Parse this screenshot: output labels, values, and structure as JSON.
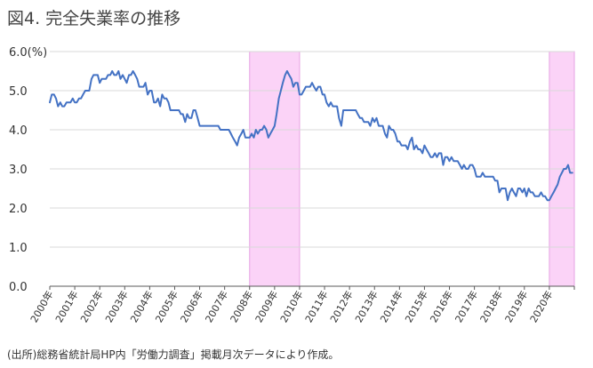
{
  "chart_data": {
    "type": "line",
    "title": "図4. 完全失業率の推移",
    "ylabel": "6.0(%)",
    "ylim": [
      0,
      6
    ],
    "y_ticks": [
      "0.0",
      "1.0",
      "2.0",
      "3.0",
      "4.0",
      "5.0"
    ],
    "x_tick_labels": [
      "2000年",
      "2001年",
      "2002年",
      "2003年",
      "2004年",
      "2005年",
      "2006年",
      "2007年",
      "2008年",
      "2009年",
      "2010年",
      "2011年",
      "2012年",
      "2013年",
      "2014年",
      "2015年",
      "2016年",
      "2017年",
      "2018年",
      "2019年",
      "2020年"
    ],
    "x_range": [
      2000.0,
      2021.0
    ],
    "grid": "horizontal",
    "colors": {
      "line": "#4472c4",
      "shade": "#fbd3f7",
      "shade_edge": "#e6a3e3",
      "grid": "#d9d9d9"
    },
    "shaded_periods": [
      {
        "start": 2008.0,
        "end": 2010.0
      },
      {
        "start": 2020.0,
        "end": 2021.0
      }
    ],
    "series": [
      {
        "points": [
          [
            2000.0,
            4.7
          ],
          [
            2000.08,
            4.9
          ],
          [
            2000.17,
            4.9
          ],
          [
            2000.25,
            4.8
          ],
          [
            2000.33,
            4.6
          ],
          [
            2000.42,
            4.7
          ],
          [
            2000.5,
            4.6
          ],
          [
            2000.58,
            4.6
          ],
          [
            2000.67,
            4.7
          ],
          [
            2000.75,
            4.7
          ],
          [
            2000.83,
            4.7
          ],
          [
            2000.92,
            4.8
          ],
          [
            2001.0,
            4.7
          ],
          [
            2001.08,
            4.7
          ],
          [
            2001.17,
            4.8
          ],
          [
            2001.25,
            4.8
          ],
          [
            2001.33,
            4.9
          ],
          [
            2001.42,
            5.0
          ],
          [
            2001.5,
            5.0
          ],
          [
            2001.58,
            5.0
          ],
          [
            2001.67,
            5.3
          ],
          [
            2001.75,
            5.4
          ],
          [
            2001.83,
            5.4
          ],
          [
            2001.92,
            5.4
          ],
          [
            2002.0,
            5.2
          ],
          [
            2002.08,
            5.3
          ],
          [
            2002.17,
            5.3
          ],
          [
            2002.25,
            5.3
          ],
          [
            2002.33,
            5.4
          ],
          [
            2002.42,
            5.4
          ],
          [
            2002.5,
            5.5
          ],
          [
            2002.58,
            5.4
          ],
          [
            2002.67,
            5.4
          ],
          [
            2002.75,
            5.5
          ],
          [
            2002.83,
            5.3
          ],
          [
            2002.92,
            5.4
          ],
          [
            2003.0,
            5.3
          ],
          [
            2003.08,
            5.2
          ],
          [
            2003.17,
            5.4
          ],
          [
            2003.25,
            5.4
          ],
          [
            2003.33,
            5.5
          ],
          [
            2003.42,
            5.4
          ],
          [
            2003.5,
            5.3
          ],
          [
            2003.58,
            5.1
          ],
          [
            2003.67,
            5.1
          ],
          [
            2003.75,
            5.1
          ],
          [
            2003.83,
            5.2
          ],
          [
            2003.92,
            4.9
          ],
          [
            2004.0,
            5.0
          ],
          [
            2004.08,
            5.0
          ],
          [
            2004.17,
            4.7
          ],
          [
            2004.25,
            4.7
          ],
          [
            2004.33,
            4.8
          ],
          [
            2004.42,
            4.6
          ],
          [
            2004.5,
            4.9
          ],
          [
            2004.58,
            4.8
          ],
          [
            2004.67,
            4.8
          ],
          [
            2004.75,
            4.7
          ],
          [
            2004.83,
            4.5
          ],
          [
            2004.92,
            4.5
          ],
          [
            2005.0,
            4.5
          ],
          [
            2005.08,
            4.5
          ],
          [
            2005.17,
            4.5
          ],
          [
            2005.25,
            4.4
          ],
          [
            2005.33,
            4.4
          ],
          [
            2005.42,
            4.2
          ],
          [
            2005.5,
            4.4
          ],
          [
            2005.58,
            4.3
          ],
          [
            2005.67,
            4.3
          ],
          [
            2005.75,
            4.5
          ],
          [
            2005.83,
            4.5
          ],
          [
            2005.92,
            4.3
          ],
          [
            2006.0,
            4.1
          ],
          [
            2006.08,
            4.1
          ],
          [
            2006.17,
            4.1
          ],
          [
            2006.25,
            4.1
          ],
          [
            2006.33,
            4.1
          ],
          [
            2006.42,
            4.1
          ],
          [
            2006.5,
            4.1
          ],
          [
            2006.58,
            4.1
          ],
          [
            2006.67,
            4.1
          ],
          [
            2006.75,
            4.1
          ],
          [
            2006.83,
            4.0
          ],
          [
            2006.92,
            4.0
          ],
          [
            2007.0,
            4.0
          ],
          [
            2007.08,
            4.0
          ],
          [
            2007.17,
            4.0
          ],
          [
            2007.25,
            3.9
          ],
          [
            2007.33,
            3.8
          ],
          [
            2007.42,
            3.7
          ],
          [
            2007.5,
            3.6
          ],
          [
            2007.58,
            3.8
          ],
          [
            2007.67,
            3.9
          ],
          [
            2007.75,
            4.0
          ],
          [
            2007.83,
            3.8
          ],
          [
            2007.92,
            3.8
          ],
          [
            2008.0,
            3.8
          ],
          [
            2008.08,
            3.9
          ],
          [
            2008.17,
            3.8
          ],
          [
            2008.25,
            4.0
          ],
          [
            2008.33,
            3.9
          ],
          [
            2008.42,
            4.0
          ],
          [
            2008.5,
            4.0
          ],
          [
            2008.58,
            4.1
          ],
          [
            2008.67,
            4.0
          ],
          [
            2008.75,
            3.8
          ],
          [
            2008.83,
            3.9
          ],
          [
            2008.92,
            4.0
          ],
          [
            2009.0,
            4.1
          ],
          [
            2009.08,
            4.4
          ],
          [
            2009.17,
            4.8
          ],
          [
            2009.25,
            5.0
          ],
          [
            2009.33,
            5.2
          ],
          [
            2009.42,
            5.4
          ],
          [
            2009.5,
            5.5
          ],
          [
            2009.58,
            5.4
          ],
          [
            2009.67,
            5.3
          ],
          [
            2009.75,
            5.1
          ],
          [
            2009.83,
            5.2
          ],
          [
            2009.92,
            5.2
          ],
          [
            2010.0,
            4.9
          ],
          [
            2010.08,
            4.9
          ],
          [
            2010.17,
            5.0
          ],
          [
            2010.25,
            5.1
          ],
          [
            2010.33,
            5.1
          ],
          [
            2010.42,
            5.1
          ],
          [
            2010.5,
            5.2
          ],
          [
            2010.58,
            5.1
          ],
          [
            2010.67,
            5.0
          ],
          [
            2010.75,
            5.1
          ],
          [
            2010.83,
            5.1
          ],
          [
            2010.92,
            4.9
          ],
          [
            2011.0,
            4.9
          ],
          [
            2011.08,
            4.7
          ],
          [
            2011.17,
            4.6
          ],
          [
            2011.25,
            4.7
          ],
          [
            2011.33,
            4.6
          ],
          [
            2011.42,
            4.6
          ],
          [
            2011.5,
            4.6
          ],
          [
            2011.58,
            4.3
          ],
          [
            2011.67,
            4.1
          ],
          [
            2011.75,
            4.5
          ],
          [
            2011.83,
            4.5
          ],
          [
            2011.92,
            4.5
          ],
          [
            2012.0,
            4.5
          ],
          [
            2012.08,
            4.5
          ],
          [
            2012.17,
            4.5
          ],
          [
            2012.25,
            4.5
          ],
          [
            2012.33,
            4.4
          ],
          [
            2012.42,
            4.3
          ],
          [
            2012.5,
            4.3
          ],
          [
            2012.58,
            4.2
          ],
          [
            2012.67,
            4.2
          ],
          [
            2012.75,
            4.2
          ],
          [
            2012.83,
            4.1
          ],
          [
            2012.92,
            4.3
          ],
          [
            2013.0,
            4.2
          ],
          [
            2013.08,
            4.3
          ],
          [
            2013.17,
            4.1
          ],
          [
            2013.25,
            4.1
          ],
          [
            2013.33,
            4.1
          ],
          [
            2013.42,
            3.9
          ],
          [
            2013.5,
            3.8
          ],
          [
            2013.58,
            4.1
          ],
          [
            2013.67,
            4.0
          ],
          [
            2013.75,
            4.0
          ],
          [
            2013.83,
            3.9
          ],
          [
            2013.92,
            3.7
          ],
          [
            2014.0,
            3.7
          ],
          [
            2014.08,
            3.6
          ],
          [
            2014.17,
            3.6
          ],
          [
            2014.25,
            3.6
          ],
          [
            2014.33,
            3.5
          ],
          [
            2014.42,
            3.7
          ],
          [
            2014.5,
            3.8
          ],
          [
            2014.58,
            3.5
          ],
          [
            2014.67,
            3.6
          ],
          [
            2014.75,
            3.5
          ],
          [
            2014.83,
            3.5
          ],
          [
            2014.92,
            3.4
          ],
          [
            2015.0,
            3.6
          ],
          [
            2015.08,
            3.5
          ],
          [
            2015.17,
            3.4
          ],
          [
            2015.25,
            3.3
          ],
          [
            2015.33,
            3.3
          ],
          [
            2015.42,
            3.4
          ],
          [
            2015.5,
            3.3
          ],
          [
            2015.58,
            3.4
          ],
          [
            2015.67,
            3.4
          ],
          [
            2015.75,
            3.1
          ],
          [
            2015.83,
            3.3
          ],
          [
            2015.92,
            3.3
          ],
          [
            2016.0,
            3.2
          ],
          [
            2016.08,
            3.3
          ],
          [
            2016.17,
            3.2
          ],
          [
            2016.25,
            3.2
          ],
          [
            2016.33,
            3.2
          ],
          [
            2016.42,
            3.1
          ],
          [
            2016.5,
            3.0
          ],
          [
            2016.58,
            3.1
          ],
          [
            2016.67,
            3.0
          ],
          [
            2016.75,
            3.0
          ],
          [
            2016.83,
            3.1
          ],
          [
            2016.92,
            3.1
          ],
          [
            2017.0,
            3.0
          ],
          [
            2017.08,
            2.8
          ],
          [
            2017.17,
            2.8
          ],
          [
            2017.25,
            2.8
          ],
          [
            2017.33,
            2.9
          ],
          [
            2017.42,
            2.8
          ],
          [
            2017.5,
            2.8
          ],
          [
            2017.58,
            2.8
          ],
          [
            2017.67,
            2.8
          ],
          [
            2017.75,
            2.8
          ],
          [
            2017.83,
            2.7
          ],
          [
            2017.92,
            2.7
          ],
          [
            2018.0,
            2.4
          ],
          [
            2018.08,
            2.5
          ],
          [
            2018.17,
            2.5
          ],
          [
            2018.25,
            2.5
          ],
          [
            2018.33,
            2.2
          ],
          [
            2018.42,
            2.4
          ],
          [
            2018.5,
            2.5
          ],
          [
            2018.58,
            2.4
          ],
          [
            2018.67,
            2.3
          ],
          [
            2018.75,
            2.5
          ],
          [
            2018.83,
            2.5
          ],
          [
            2018.92,
            2.4
          ],
          [
            2019.0,
            2.5
          ],
          [
            2019.08,
            2.3
          ],
          [
            2019.17,
            2.5
          ],
          [
            2019.25,
            2.4
          ],
          [
            2019.33,
            2.4
          ],
          [
            2019.42,
            2.3
          ],
          [
            2019.5,
            2.3
          ],
          [
            2019.58,
            2.3
          ],
          [
            2019.67,
            2.4
          ],
          [
            2019.75,
            2.3
          ],
          [
            2019.83,
            2.3
          ],
          [
            2019.92,
            2.2
          ],
          [
            2020.0,
            2.2
          ],
          [
            2020.08,
            2.3
          ],
          [
            2020.17,
            2.4
          ],
          [
            2020.25,
            2.5
          ],
          [
            2020.33,
            2.6
          ],
          [
            2020.42,
            2.8
          ],
          [
            2020.5,
            2.9
          ],
          [
            2020.58,
            3.0
          ],
          [
            2020.67,
            3.0
          ],
          [
            2020.75,
            3.1
          ],
          [
            2020.83,
            2.9
          ],
          [
            2020.92,
            2.9
          ]
        ]
      }
    ]
  },
  "footer": {
    "source": "(出所)総務省統計局HP内「労働力調査」掲載月次データにより作成。"
  }
}
